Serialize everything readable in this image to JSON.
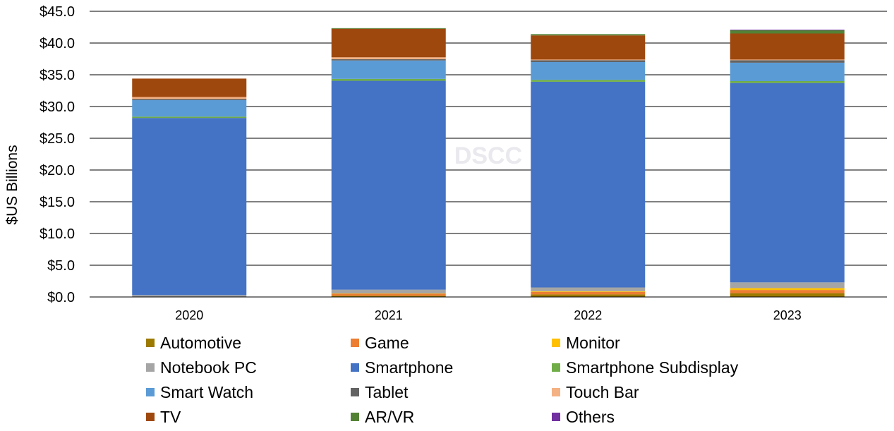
{
  "chart_data": {
    "type": "stacked-bar",
    "title": "",
    "watermark": "DSCC",
    "ylabel": "$US Billions",
    "xlabel": "",
    "ylim": [
      0,
      45
    ],
    "ytick_labels": [
      "$0.0",
      "$5.0",
      "$10.0",
      "$15.0",
      "$20.0",
      "$25.0",
      "$30.0",
      "$35.0",
      "$40.0",
      "$45.0"
    ],
    "ytick_values": [
      0,
      5,
      10,
      15,
      20,
      25,
      30,
      35,
      40,
      45
    ],
    "grid": true,
    "legend_position": "bottom",
    "categories": [
      "2020",
      "2021",
      "2022",
      "2023"
    ],
    "series": [
      {
        "name": "Automotive",
        "color": "#9C7A00",
        "values": [
          0.05,
          0.2,
          0.4,
          0.6
        ]
      },
      {
        "name": "Game",
        "color": "#ED7D31",
        "values": [
          0.0,
          0.3,
          0.4,
          0.5
        ]
      },
      {
        "name": "Monitor",
        "color": "#FFC000",
        "values": [
          0.0,
          0.05,
          0.1,
          0.3
        ]
      },
      {
        "name": "Notebook PC",
        "color": "#A5A5A5",
        "values": [
          0.25,
          0.6,
          0.6,
          0.9
        ]
      },
      {
        "name": "Smartphone",
        "color": "#4472C4",
        "values": [
          27.9,
          32.9,
          32.4,
          31.4
        ]
      },
      {
        "name": "Smartphone Subdisplay",
        "color": "#70AD47",
        "values": [
          0.2,
          0.3,
          0.3,
          0.3
        ]
      },
      {
        "name": "Smart Watch",
        "color": "#5B9BD5",
        "values": [
          2.6,
          2.9,
          2.8,
          2.9
        ]
      },
      {
        "name": "Tablet",
        "color": "#636363",
        "values": [
          0.2,
          0.2,
          0.3,
          0.4
        ]
      },
      {
        "name": "Touch Bar",
        "color": "#F4B183",
        "values": [
          0.3,
          0.3,
          0.1,
          0.1
        ]
      },
      {
        "name": "TV",
        "color": "#9E480E",
        "values": [
          2.9,
          4.5,
          3.8,
          4.1
        ]
      },
      {
        "name": "AR/VR",
        "color": "#548235",
        "values": [
          0.0,
          0.1,
          0.2,
          0.5
        ]
      },
      {
        "name": "Others",
        "color": "#7030A0",
        "values": [
          0.0,
          0.0,
          0.0,
          0.1
        ]
      }
    ]
  }
}
